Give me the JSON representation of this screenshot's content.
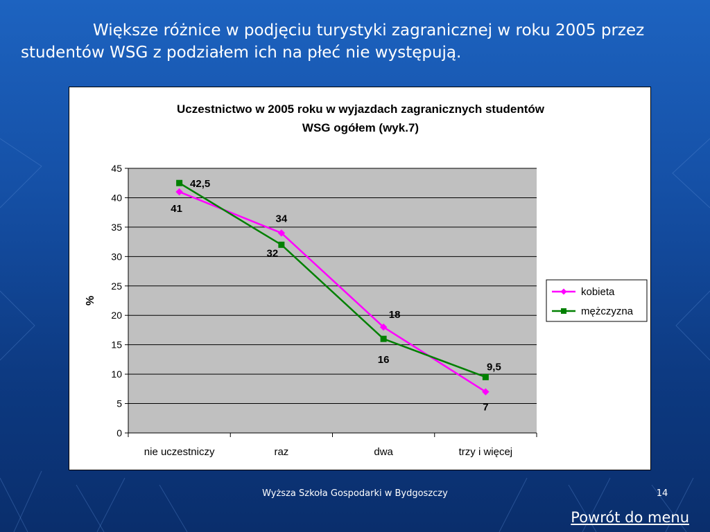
{
  "slide": {
    "headline": "Większe różnice w podjęciu turystyki zagranicznej w roku 2005 przez studentów WSG z podziałem ich na płeć nie występują.",
    "footer": "Wyższa Szkoła Gospodarki w Bydgoszczy",
    "page_number": "14",
    "back_link": "Powrót do menu"
  },
  "colors": {
    "background": "#1556b0",
    "kobieta": "#ff00ff",
    "mezczyzna": "#008000",
    "plot_area": "#c0c0c0"
  },
  "chart_data": {
    "type": "line",
    "title_line1": "Uczestnictwo w 2005 roku w wyjazdach zagranicznych studentów",
    "title_line2": "WSG ogółem (wyk.7)",
    "xlabel": "",
    "ylabel": "%",
    "ylim": [
      0,
      45
    ],
    "y_ticks": [
      "0",
      "5",
      "10",
      "15",
      "20",
      "25",
      "30",
      "35",
      "40",
      "45"
    ],
    "categories": [
      "nie uczestniczy",
      "raz",
      "dwa",
      "trzy i więcej"
    ],
    "grid": true,
    "legend_position": "right",
    "series": [
      {
        "name": "kobieta",
        "marker": "diamond",
        "values": [
          41,
          34,
          18,
          7
        ],
        "labels": [
          "41",
          "34",
          "18",
          "7"
        ]
      },
      {
        "name": "mężczyzna",
        "marker": "square",
        "values": [
          42.5,
          32,
          16,
          9.5
        ],
        "labels": [
          "42,5",
          "32",
          "16",
          "9,5"
        ]
      }
    ]
  }
}
